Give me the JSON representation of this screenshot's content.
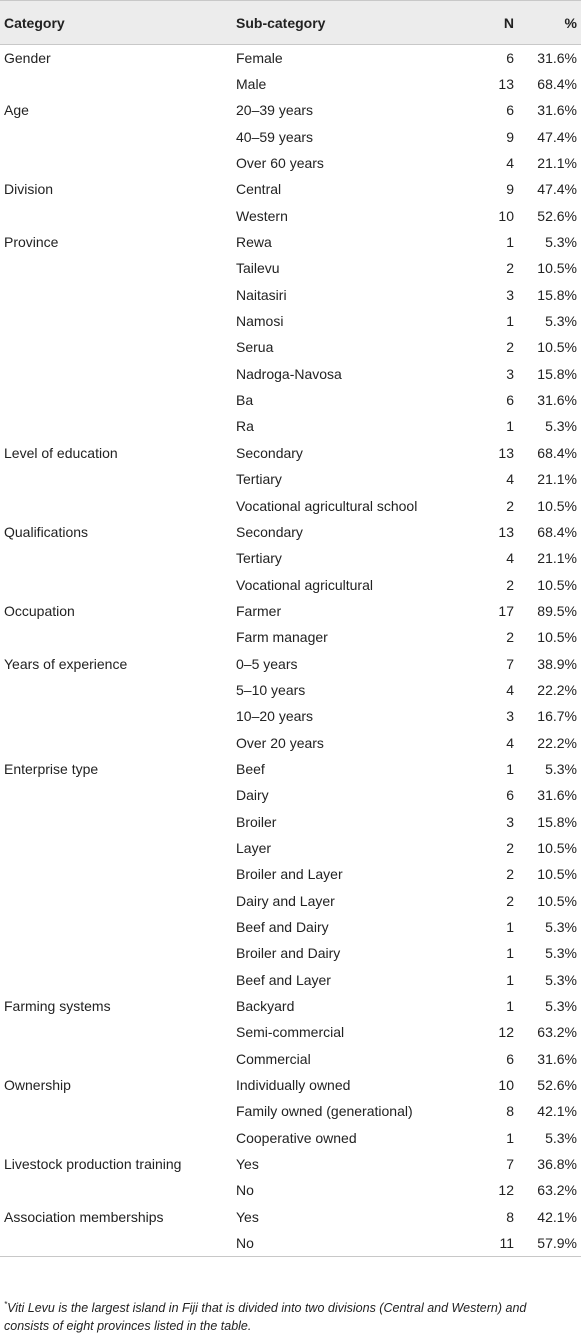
{
  "header": {
    "category": "Category",
    "subcategory": "Sub-category",
    "n": "N",
    "pct": "%"
  },
  "rows": [
    {
      "category": "Gender",
      "sub": "Female",
      "n": "6",
      "pct": "31.6%"
    },
    {
      "category": "",
      "sub": "Male",
      "n": "13",
      "pct": "68.4%"
    },
    {
      "category": "Age",
      "sub": "20–39 years",
      "n": "6",
      "pct": "31.6%"
    },
    {
      "category": "",
      "sub": "40–59 years",
      "n": "9",
      "pct": "47.4%"
    },
    {
      "category": "",
      "sub": "Over 60 years",
      "n": "4",
      "pct": "21.1%"
    },
    {
      "category": "Division",
      "sub": "Central",
      "n": "9",
      "pct": "47.4%"
    },
    {
      "category": "",
      "sub": "Western",
      "n": "10",
      "pct": "52.6%"
    },
    {
      "category": "Province",
      "sub": "Rewa",
      "n": "1",
      "pct": "5.3%"
    },
    {
      "category": "",
      "sub": "Tailevu",
      "n": "2",
      "pct": "10.5%"
    },
    {
      "category": "",
      "sub": "Naitasiri",
      "n": "3",
      "pct": "15.8%"
    },
    {
      "category": "",
      "sub": "Namosi",
      "n": "1",
      "pct": "5.3%"
    },
    {
      "category": "",
      "sub": "Serua",
      "n": "2",
      "pct": "10.5%"
    },
    {
      "category": "",
      "sub": "Nadroga-Navosa",
      "n": "3",
      "pct": "15.8%"
    },
    {
      "category": "",
      "sub": "Ba",
      "n": "6",
      "pct": "31.6%"
    },
    {
      "category": "",
      "sub": "Ra",
      "n": "1",
      "pct": "5.3%"
    },
    {
      "category": "Level of education",
      "sub": "Secondary",
      "n": "13",
      "pct": "68.4%"
    },
    {
      "category": "",
      "sub": "Tertiary",
      "n": "4",
      "pct": "21.1%"
    },
    {
      "category": "",
      "sub": "Vocational agricultural school",
      "n": "2",
      "pct": "10.5%"
    },
    {
      "category": "Qualifications",
      "sub": "Secondary",
      "n": "13",
      "pct": "68.4%"
    },
    {
      "category": "",
      "sub": "Tertiary",
      "n": "4",
      "pct": "21.1%"
    },
    {
      "category": "",
      "sub": "Vocational agricultural",
      "n": "2",
      "pct": "10.5%"
    },
    {
      "category": "Occupation",
      "sub": "Farmer",
      "n": "17",
      "pct": "89.5%"
    },
    {
      "category": "",
      "sub": "Farm manager",
      "n": "2",
      "pct": "10.5%"
    },
    {
      "category": "Years of experience",
      "sub": "0–5 years",
      "n": "7",
      "pct": "38.9%"
    },
    {
      "category": "",
      "sub": "5–10 years",
      "n": "4",
      "pct": "22.2%"
    },
    {
      "category": "",
      "sub": "10–20 years",
      "n": "3",
      "pct": "16.7%"
    },
    {
      "category": "",
      "sub": "Over 20 years",
      "n": "4",
      "pct": "22.2%"
    },
    {
      "category": "Enterprise type",
      "sub": "Beef",
      "n": "1",
      "pct": "5.3%"
    },
    {
      "category": "",
      "sub": "Dairy",
      "n": "6",
      "pct": "31.6%"
    },
    {
      "category": "",
      "sub": "Broiler",
      "n": "3",
      "pct": "15.8%"
    },
    {
      "category": "",
      "sub": "Layer",
      "n": "2",
      "pct": "10.5%"
    },
    {
      "category": "",
      "sub": "Broiler and Layer",
      "n": "2",
      "pct": "10.5%"
    },
    {
      "category": "",
      "sub": "Dairy and Layer",
      "n": "2",
      "pct": "10.5%"
    },
    {
      "category": "",
      "sub": "Beef and Dairy",
      "n": "1",
      "pct": "5.3%"
    },
    {
      "category": "",
      "sub": "Broiler and Dairy",
      "n": "1",
      "pct": "5.3%"
    },
    {
      "category": "",
      "sub": "Beef and Layer",
      "n": "1",
      "pct": "5.3%"
    },
    {
      "category": "Farming systems",
      "sub": "Backyard",
      "n": "1",
      "pct": "5.3%"
    },
    {
      "category": "",
      "sub": "Semi-commercial",
      "n": "12",
      "pct": "63.2%"
    },
    {
      "category": "",
      "sub": "Commercial",
      "n": "6",
      "pct": "31.6%"
    },
    {
      "category": "Ownership",
      "sub": "Individually owned",
      "n": "10",
      "pct": "52.6%"
    },
    {
      "category": "",
      "sub": "Family owned (generational)",
      "n": "8",
      "pct": "42.1%"
    },
    {
      "category": "",
      "sub": "Cooperative owned",
      "n": "1",
      "pct": "5.3%"
    },
    {
      "category": "Livestock production training",
      "sub": "Yes",
      "n": "7",
      "pct": "36.8%"
    },
    {
      "category": "",
      "sub": "No",
      "n": "12",
      "pct": "63.2%"
    },
    {
      "category": "Association memberships",
      "sub": "Yes",
      "n": "8",
      "pct": "42.1%"
    },
    {
      "category": "",
      "sub": "No",
      "n": "11",
      "pct": "57.9%"
    }
  ],
  "footnote": {
    "marker": "*",
    "text": "Viti Levu is the largest island in Fiji that is divided into two divisions (Central and Western) and consists of eight provinces listed in the table."
  }
}
